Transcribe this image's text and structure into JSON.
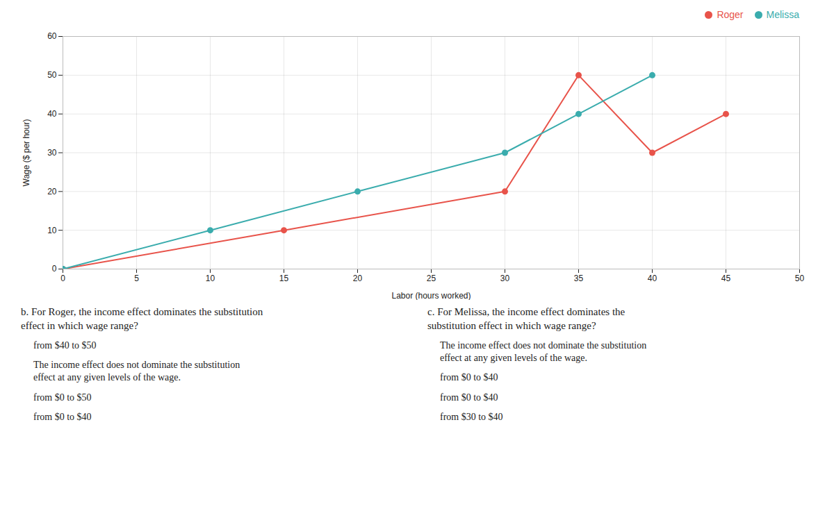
{
  "chart_data": {
    "type": "line",
    "xlabel": "Labor (hours worked)",
    "ylabel": "Wage ($ per hour)",
    "xlim": [
      0,
      50
    ],
    "ylim": [
      0,
      60
    ],
    "xticks": [
      0,
      5,
      10,
      15,
      20,
      25,
      30,
      35,
      40,
      45,
      50
    ],
    "yticks": [
      0,
      10,
      20,
      30,
      40,
      50,
      60
    ],
    "grid": true,
    "legend": "upper right",
    "marker": "circle",
    "series": [
      {
        "name": "Roger",
        "color": "#e8534a",
        "x": [
          0,
          15,
          30,
          35,
          40,
          45
        ],
        "values": [
          0,
          10,
          20,
          50,
          30,
          40
        ]
      },
      {
        "name": "Melissa",
        "color": "#3aacad",
        "x": [
          0,
          10,
          20,
          30,
          35,
          40
        ],
        "values": [
          0,
          10,
          20,
          30,
          40,
          50
        ]
      }
    ],
    "annotations": [
      [
        "b. For Roger, the income effect dominates the substitution\neffect in which wage range?",
        "from $40 to $50",
        "The income effect does not dominate the substitution\neffect at any given levels of the wage.",
        "from $0 to $50",
        "from $0 to $40"
      ],
      [
        "c. For Melissa, the income effect dominates the\nsubstitution effect in which wage range?",
        "The income effect does not dominate the substitution\neffect at any given levels of the wage.",
        "from $0 to $40",
        "from $0 to $40",
        "from $30 to $40"
      ]
    ]
  }
}
